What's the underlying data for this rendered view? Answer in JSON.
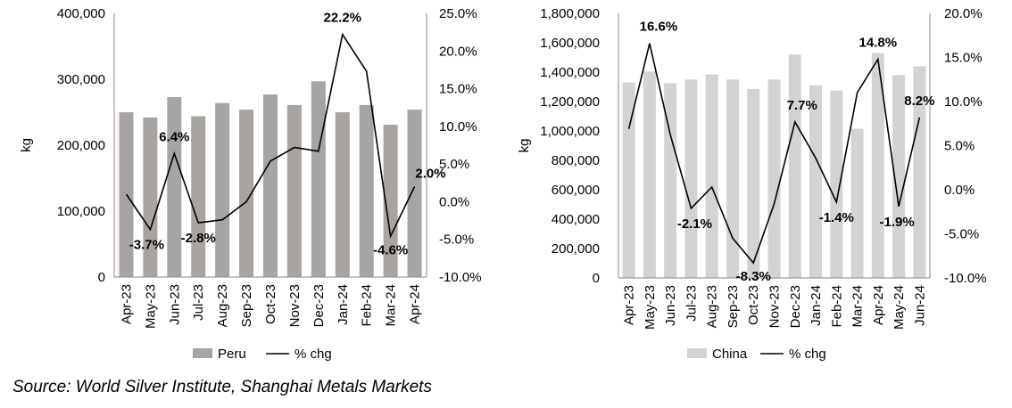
{
  "chart_data": [
    {
      "type": "bar+line",
      "categories": [
        "Apr-23",
        "May-23",
        "Jun-23",
        "Jul-23",
        "Aug-23",
        "Sep-23",
        "Oct-23",
        "Nov-23",
        "Dec-23",
        "Jan-24",
        "Feb-24",
        "Mar-24",
        "Apr-24"
      ],
      "series": [
        {
          "name": "Peru",
          "type": "bar",
          "axis": "left",
          "color": "#a8a4a1",
          "values": [
            250000,
            242000,
            273000,
            244000,
            264000,
            254000,
            277000,
            261000,
            297000,
            250000,
            261000,
            231000,
            254000
          ]
        },
        {
          "name": "% chg",
          "type": "line",
          "axis": "right",
          "color": "#000000",
          "values": [
            1.0,
            -3.7,
            6.4,
            -2.8,
            -2.4,
            0.0,
            5.4,
            7.2,
            6.7,
            22.2,
            17.3,
            -4.6,
            2.0
          ]
        }
      ],
      "point_labels": [
        {
          "index": 1,
          "text": "-3.7%"
        },
        {
          "index": 2,
          "text": "6.4%"
        },
        {
          "index": 3,
          "text": "-2.8%"
        },
        {
          "index": 9,
          "text": "22.2%"
        },
        {
          "index": 11,
          "text": "-4.6%"
        },
        {
          "index": 12,
          "text": "2.0%"
        }
      ],
      "ylabel": "kg",
      "ylim": [
        0,
        400000
      ],
      "yticks": [
        "0",
        "100,000",
        "200,000",
        "300,000",
        "400,000"
      ],
      "y2lim": [
        -10,
        25
      ],
      "y2ticks": [
        "-10.0%",
        "-5.0%",
        "0.0%",
        "5.0%",
        "10.0%",
        "15.0%",
        "20.0%",
        "25.0%"
      ],
      "legend": [
        "Peru",
        "% chg"
      ],
      "legend_position": "bottom",
      "grid": false
    },
    {
      "type": "bar+line",
      "categories": [
        "Apr-23",
        "May-23",
        "Jun-23",
        "Jul-23",
        "Aug-23",
        "Sep-23",
        "Oct-23",
        "Nov-23",
        "Dec-23",
        "Jan-24",
        "Feb-24",
        "Mar-24",
        "Apr-24",
        "May-24",
        "Jun-24"
      ],
      "series": [
        {
          "name": "China",
          "type": "bar",
          "axis": "left",
          "color": "#d3d3d3",
          "values": [
            1330000,
            1405000,
            1325000,
            1350000,
            1385000,
            1350000,
            1285000,
            1350000,
            1520000,
            1310000,
            1275000,
            1015000,
            1530000,
            1380000,
            1440000
          ]
        },
        {
          "name": "% chg",
          "type": "line",
          "axis": "right",
          "color": "#000000",
          "values": [
            6.9,
            16.6,
            6.2,
            -2.1,
            0.3,
            -5.5,
            -8.3,
            -1.6,
            7.7,
            3.6,
            -1.4,
            11.0,
            14.8,
            -1.9,
            8.2
          ]
        }
      ],
      "point_labels": [
        {
          "index": 1,
          "text": "16.6%"
        },
        {
          "index": 3,
          "text": "-2.1%"
        },
        {
          "index": 6,
          "text": "-8.3%"
        },
        {
          "index": 8,
          "text": "7.7%"
        },
        {
          "index": 10,
          "text": "-1.4%"
        },
        {
          "index": 12,
          "text": "14.8%"
        },
        {
          "index": 13,
          "text": "-1.9%"
        },
        {
          "index": 14,
          "text": "8.2%"
        }
      ],
      "ylabel": "kg",
      "ylim": [
        0,
        1800000
      ],
      "yticks": [
        "0",
        "200,000",
        "400,000",
        "600,000",
        "800,000",
        "1,000,000",
        "1,200,000",
        "1,400,000",
        "1,600,000",
        "1,800,000"
      ],
      "y2lim": [
        -10,
        20
      ],
      "y2ticks": [
        "-10.0%",
        "-5.0%",
        "0.0%",
        "5.0%",
        "10.0%",
        "15.0%",
        "20.0%"
      ],
      "legend": [
        "China",
        "% chg"
      ],
      "legend_position": "bottom",
      "grid": false
    }
  ],
  "source": "Source: World Silver Institute, Shanghai Metals Markets"
}
